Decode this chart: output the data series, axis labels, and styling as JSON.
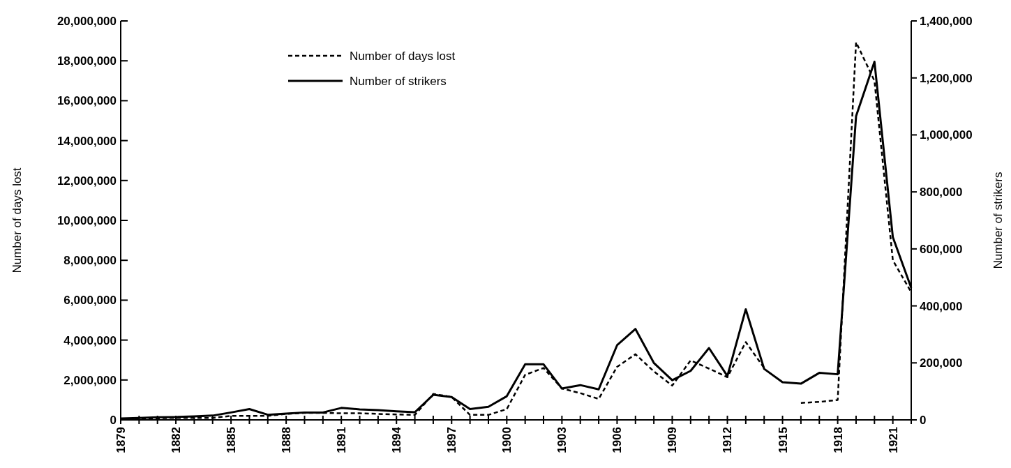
{
  "chart_data": {
    "type": "line",
    "xlabel": null,
    "ylabel": "Number of days lost",
    "y2label": "Number of strikers",
    "x": [
      1879,
      1880,
      1881,
      1882,
      1883,
      1884,
      1885,
      1886,
      1887,
      1888,
      1889,
      1890,
      1891,
      1892,
      1893,
      1894,
      1895,
      1896,
      1897,
      1898,
      1899,
      1900,
      1901,
      1902,
      1903,
      1904,
      1905,
      1906,
      1907,
      1908,
      1909,
      1910,
      1911,
      1912,
      1913,
      1914,
      1915,
      1916,
      1917,
      1918,
      1919,
      1920,
      1921,
      1922
    ],
    "series": [
      {
        "name": "Number of days lost",
        "color": "#000000",
        "line_style": "dashed",
        "values": [
          50000,
          60000,
          80000,
          100000,
          100000,
          100000,
          200000,
          200000,
          200000,
          300000,
          350000,
          350000,
          330000,
          330000,
          300000,
          270000,
          250000,
          1300000,
          1150000,
          250000,
          250000,
          540000,
          2260000,
          2600000,
          1570000,
          1340000,
          1050000,
          2660000,
          3290000,
          2430000,
          1720000,
          2980000,
          2570000,
          2140000,
          3900000,
          2600000,
          null,
          850000,
          900000,
          1000000,
          18930000,
          17000000,
          8000000,
          6400000
        ]
      },
      {
        "name": "Number of strikers",
        "color": "#000000",
        "line_style": "solid",
        "axis": "y2",
        "values": [
          5000,
          7000,
          9000,
          10000,
          12000,
          15000,
          26000,
          38000,
          18000,
          22000,
          26000,
          26000,
          42000,
          37000,
          34000,
          30000,
          27000,
          88000,
          80000,
          38000,
          46000,
          83000,
          195000,
          195000,
          110000,
          122000,
          107000,
          262000,
          319000,
          200000,
          139000,
          172000,
          252000,
          154000,
          388000,
          179000,
          132000,
          127000,
          165000,
          160000,
          1066000,
          1257000,
          641000,
          463000
        ]
      }
    ],
    "xlim": [
      1879,
      1922
    ],
    "xticks": [
      1879,
      {
        "value": 1880,
        "label": null
      },
      {
        "value": 1881,
        "label": null
      },
      1882,
      {
        "value": 1883,
        "label": null
      },
      {
        "value": 1884,
        "label": null
      },
      1885,
      {
        "value": 1886,
        "label": null
      },
      {
        "value": 1887,
        "label": null
      },
      1888,
      {
        "value": 1889,
        "label": null
      },
      {
        "value": 1890,
        "label": null
      },
      1891,
      {
        "value": 1892,
        "label": null
      },
      {
        "value": 1893,
        "label": null
      },
      1894,
      {
        "value": 1895,
        "label": null
      },
      {
        "value": 1896,
        "label": null
      },
      1897,
      {
        "value": 1898,
        "label": null
      },
      {
        "value": 1899,
        "label": null
      },
      1900,
      {
        "value": 1901,
        "label": null
      },
      {
        "value": 1902,
        "label": null
      },
      1903,
      {
        "value": 1904,
        "label": null
      },
      {
        "value": 1905,
        "label": null
      },
      1906,
      {
        "value": 1907,
        "label": null
      },
      {
        "value": 1908,
        "label": null
      },
      1909,
      {
        "value": 1910,
        "label": null
      },
      {
        "value": 1911,
        "label": null
      },
      1912,
      {
        "value": 1913,
        "label": null
      },
      {
        "value": 1914,
        "label": null
      },
      1915,
      {
        "value": 1916,
        "label": null
      },
      {
        "value": 1917,
        "label": null
      },
      1918,
      {
        "value": 1919,
        "label": null
      },
      {
        "value": 1920,
        "label": null
      },
      1921,
      {
        "value": 1922,
        "label": null
      }
    ],
    "ylim": [
      0,
      20000000
    ],
    "yticks": [
      {
        "value": 0,
        "label": "0"
      },
      {
        "value": 2000000,
        "label": "2,000,000"
      },
      {
        "value": 4000000,
        "label": "4,000,000"
      },
      {
        "value": 6000000,
        "label": "6,000,000"
      },
      {
        "value": 8000000,
        "label": "8,000,000"
      },
      {
        "value": 10000000,
        "label": "10,000,000"
      },
      {
        "value": 12000000,
        "label": "12,000,000"
      },
      {
        "value": 14000000,
        "label": "14,000,000"
      },
      {
        "value": 16000000,
        "label": "16,000,000"
      },
      {
        "value": 18000000,
        "label": "18,000,000"
      },
      {
        "value": 20000000,
        "label": "20,000,000"
      }
    ],
    "y2lim": [
      0,
      1400000
    ],
    "y2ticks": [
      {
        "value": 0,
        "label": "0"
      },
      {
        "value": 200000,
        "label": "200,000"
      },
      {
        "value": 400000,
        "label": "400,000"
      },
      {
        "value": 600000,
        "label": "600,000"
      },
      {
        "value": 800000,
        "label": "800,000"
      },
      {
        "value": 1000000,
        "label": "1,000,000"
      },
      {
        "value": 1200000,
        "label": "1,200,000"
      },
      {
        "value": 1400000,
        "label": "1,400,000"
      }
    ],
    "legend": "top left",
    "grid": false,
    "marker": "none"
  }
}
